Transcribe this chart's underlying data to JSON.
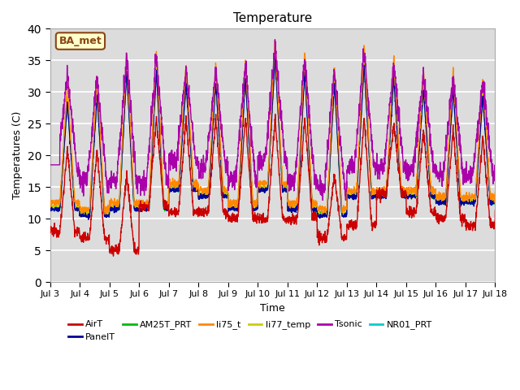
{
  "title": "Temperature",
  "ylabel": "Temperatures (C)",
  "xlabel": "Time",
  "ylim": [
    0,
    40
  ],
  "xlim": [
    0,
    15
  ],
  "plot_bg_color": "#dcdcdc",
  "annotation_text": "BA_met",
  "annotation_bg": "#ffffcc",
  "annotation_border": "#8b4513",
  "series_colors": {
    "AirT": "#cc0000",
    "PanelT": "#000099",
    "AM25T_PRT": "#00bb00",
    "li75_t": "#ff8800",
    "li77_temp": "#cccc00",
    "Tsonic": "#aa00aa",
    "NR01_PRT": "#00cccc"
  },
  "x_tick_labels": [
    "Jul 3",
    "Jul 4",
    "Jul 5",
    "Jul 6",
    "Jul 7",
    "Jul 8",
    "Jul 9",
    "Jul 10",
    "Jul 11",
    "Jul 12",
    "Jul 13",
    "Jul 14",
    "Jul 15",
    "Jul 16",
    "Jul 17",
    "Jul 18"
  ],
  "x_tick_positions": [
    0,
    1,
    2,
    3,
    4,
    5,
    6,
    7,
    8,
    9,
    10,
    11,
    12,
    13,
    14,
    15
  ],
  "grid_color": "#ffffff",
  "legend_entries": [
    "AirT",
    "PanelT",
    "AM25T_PRT",
    "li75_t",
    "li77_temp",
    "Tsonic",
    "NR01_PRT"
  ]
}
